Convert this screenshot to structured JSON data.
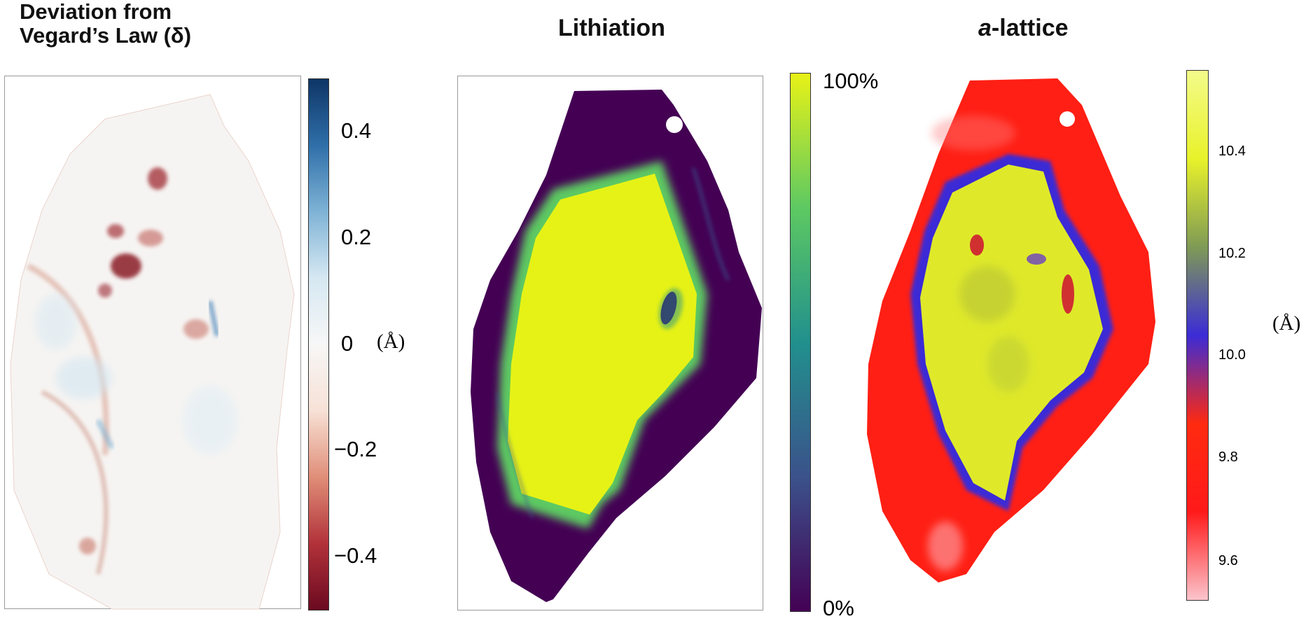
{
  "chart_data": [
    {
      "type": "heatmap",
      "title_line1": "Deviation from",
      "title_line2": "Vegard’s Law (δ)",
      "colorbar": {
        "colormap": "RdBu",
        "range": [
          -0.5,
          0.5
        ],
        "ticks": [
          0.4,
          0.2,
          0,
          -0.2,
          -0.4
        ],
        "tick_labels": [
          "0.4",
          "0.2",
          "0",
          "−0.2",
          "−0.4"
        ],
        "unit": "(Å)",
        "colors": [
          "#6b0a20",
          "#b2323a",
          "#e08e78",
          "#f7e1d6",
          "#f7f7f7",
          "#d6e8f2",
          "#7fb3d6",
          "#2f6fa9",
          "#0e3566"
        ]
      }
    },
    {
      "type": "heatmap",
      "title": "Lithiation",
      "colorbar": {
        "colormap": "viridis",
        "range": [
          0,
          100
        ],
        "tick_labels": [
          "100%",
          "0%"
        ],
        "colors": [
          "#440154",
          "#3b528b",
          "#21908d",
          "#5dc962",
          "#e8f217"
        ]
      }
    },
    {
      "type": "heatmap",
      "title_italic": "a",
      "title_rest": "-lattice",
      "colorbar": {
        "range": [
          9.52,
          10.56
        ],
        "ticks": [
          10.4,
          10.2,
          10.0,
          9.8,
          9.6
        ],
        "tick_labels": [
          "10.4",
          "10.2",
          "10.0",
          "9.8",
          "9.6"
        ],
        "unit": "(Å)",
        "colors": [
          "#fbc4cc",
          "#ff1a1a",
          "#ff2a10",
          "#3b2cd6",
          "#7f9a55",
          "#e8f22a",
          "#f4fb8a"
        ]
      }
    }
  ]
}
